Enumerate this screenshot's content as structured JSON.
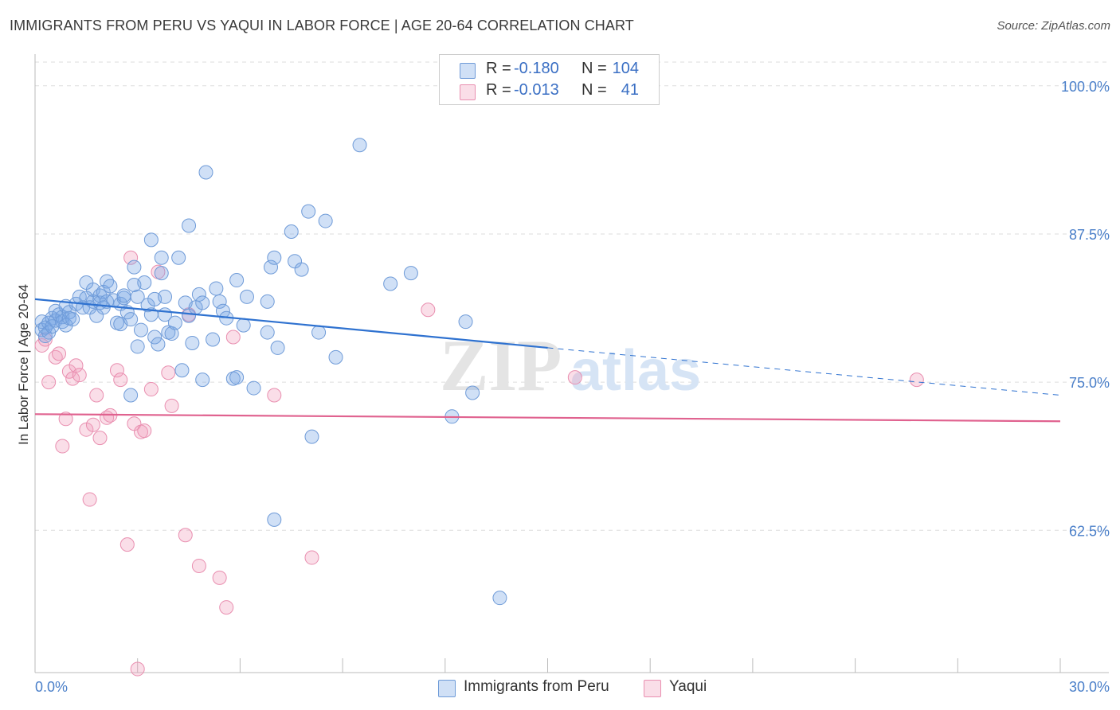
{
  "header": {
    "title": "IMMIGRANTS FROM PERU VS YAQUI IN LABOR FORCE | AGE 20-64 CORRELATION CHART",
    "source": "Source: ZipAtlas.com"
  },
  "watermark": {
    "zip": "ZIP",
    "atlas": "atlas"
  },
  "legend": {
    "rows": [
      {
        "r_label": "R =",
        "r_value": "-0.180",
        "n_label": "N =",
        "n_value": "104",
        "color": "#7fa8e0"
      },
      {
        "r_label": "R =",
        "r_value": "-0.013",
        "n_label": "N =",
        "n_value": "41",
        "color": "#f0a0bc"
      }
    ]
  },
  "bottom_legend": {
    "items": [
      {
        "label": "Immigrants from Peru",
        "color": "#7fa8e0"
      },
      {
        "label": "Yaqui",
        "color": "#f0a0bc"
      }
    ]
  },
  "colors": {
    "blue_fill": "rgba(120,165,228,0.35)",
    "blue_stroke": "#6f9bd8",
    "blue_line": "#2f72d0",
    "pink_fill": "rgba(240,160,188,0.35)",
    "pink_stroke": "#e98fb0",
    "pink_line": "#e0628f",
    "grid": "#dddddd",
    "tick_text": "#4a7fc9"
  },
  "chart_data": {
    "type": "scatter",
    "title": "IMMIGRANTS FROM PERU VS YAQUI IN LABOR FORCE | AGE 20-64 CORRELATION CHART",
    "xlabel": "",
    "ylabel": "In Labor Force | Age 20-64",
    "xlim": [
      0,
      30
    ],
    "ylim": [
      50.5,
      102
    ],
    "x_tick_labels": [
      "0.0%",
      "30.0%"
    ],
    "y_ticks": [
      100,
      87.5,
      75,
      62.5
    ],
    "y_tick_labels": [
      "100.0%",
      "87.5%",
      "75.0%",
      "62.5%"
    ],
    "series": [
      {
        "name": "Immigrants from Peru",
        "r": -0.18,
        "n": 104,
        "trend": {
          "x0": 0,
          "y0": 82.0,
          "x1": 15,
          "y1": 77.9,
          "x_end": 30,
          "y_end": 73.9
        },
        "points": [
          [
            0.2,
            79.4
          ],
          [
            0.2,
            80.1
          ],
          [
            0.3,
            79.6
          ],
          [
            0.3,
            78.9
          ],
          [
            0.4,
            80.0
          ],
          [
            0.4,
            79.2
          ],
          [
            0.5,
            80.4
          ],
          [
            0.5,
            79.7
          ],
          [
            0.6,
            81.0
          ],
          [
            0.6,
            80.2
          ],
          [
            0.7,
            80.7
          ],
          [
            0.8,
            80.5
          ],
          [
            0.8,
            80.1
          ],
          [
            0.9,
            81.4
          ],
          [
            0.9,
            79.8
          ],
          [
            1.0,
            80.9
          ],
          [
            1.0,
            80.4
          ],
          [
            1.1,
            80.3
          ],
          [
            1.2,
            81.6
          ],
          [
            1.3,
            82.2
          ],
          [
            1.4,
            81.3
          ],
          [
            1.5,
            83.4
          ],
          [
            1.5,
            82.1
          ],
          [
            1.6,
            81.3
          ],
          [
            1.7,
            82.8
          ],
          [
            1.7,
            81.8
          ],
          [
            1.8,
            80.6
          ],
          [
            1.9,
            82.3
          ],
          [
            1.9,
            81.7
          ],
          [
            2.0,
            82.6
          ],
          [
            2.0,
            81.3
          ],
          [
            2.1,
            83.5
          ],
          [
            2.1,
            81.8
          ],
          [
            2.2,
            83.1
          ],
          [
            2.3,
            81.9
          ],
          [
            2.4,
            80.0
          ],
          [
            2.5,
            81.6
          ],
          [
            2.5,
            79.9
          ],
          [
            2.6,
            82.1
          ],
          [
            2.6,
            82.3
          ],
          [
            2.7,
            80.9
          ],
          [
            2.8,
            80.3
          ],
          [
            2.9,
            84.7
          ],
          [
            2.9,
            83.2
          ],
          [
            3.0,
            78.0
          ],
          [
            3.0,
            82.2
          ],
          [
            3.1,
            79.4
          ],
          [
            3.2,
            83.4
          ],
          [
            3.3,
            81.5
          ],
          [
            3.4,
            80.7
          ],
          [
            3.4,
            87.0
          ],
          [
            3.5,
            78.8
          ],
          [
            3.5,
            82.0
          ],
          [
            3.6,
            78.2
          ],
          [
            3.7,
            85.5
          ],
          [
            3.7,
            84.2
          ],
          [
            3.8,
            82.2
          ],
          [
            3.8,
            80.7
          ],
          [
            3.9,
            79.2
          ],
          [
            4.0,
            79.1
          ],
          [
            4.1,
            80.0
          ],
          [
            4.2,
            85.5
          ],
          [
            4.3,
            76.0
          ],
          [
            4.4,
            81.7
          ],
          [
            4.5,
            80.6
          ],
          [
            4.5,
            88.2
          ],
          [
            4.6,
            78.3
          ],
          [
            4.7,
            81.3
          ],
          [
            4.8,
            82.4
          ],
          [
            4.9,
            81.7
          ],
          [
            4.9,
            75.2
          ],
          [
            5.0,
            92.7
          ],
          [
            5.2,
            78.6
          ],
          [
            5.3,
            82.9
          ],
          [
            5.4,
            81.8
          ],
          [
            5.5,
            81.0
          ],
          [
            5.6,
            80.4
          ],
          [
            5.8,
            75.3
          ],
          [
            5.9,
            83.6
          ],
          [
            5.9,
            75.4
          ],
          [
            6.1,
            79.8
          ],
          [
            6.2,
            82.2
          ],
          [
            6.4,
            74.5
          ],
          [
            6.8,
            79.2
          ],
          [
            6.8,
            81.8
          ],
          [
            6.9,
            84.7
          ],
          [
            7.0,
            85.5
          ],
          [
            7.1,
            77.9
          ],
          [
            7.5,
            87.7
          ],
          [
            7.6,
            85.2
          ],
          [
            7.8,
            84.5
          ],
          [
            8.0,
            89.4
          ],
          [
            8.1,
            70.4
          ],
          [
            8.3,
            79.2
          ],
          [
            8.5,
            88.6
          ],
          [
            8.8,
            77.1
          ],
          [
            9.5,
            95.0
          ],
          [
            10.4,
            83.3
          ],
          [
            11.0,
            84.2
          ],
          [
            12.2,
            72.1
          ],
          [
            12.6,
            80.1
          ],
          [
            12.8,
            74.1
          ],
          [
            13.6,
            56.8
          ],
          [
            7.0,
            63.4
          ],
          [
            2.8,
            73.9
          ]
        ]
      },
      {
        "name": "Yaqui",
        "r": -0.013,
        "n": 41,
        "trend": {
          "x0": 0,
          "y0": 72.3,
          "x1": 30,
          "y1": 71.7
        },
        "points": [
          [
            0.2,
            78.1
          ],
          [
            0.3,
            78.6
          ],
          [
            0.4,
            75.0
          ],
          [
            0.6,
            77.1
          ],
          [
            0.7,
            77.4
          ],
          [
            0.8,
            69.6
          ],
          [
            0.9,
            71.9
          ],
          [
            1.0,
            75.9
          ],
          [
            1.1,
            75.3
          ],
          [
            1.2,
            76.4
          ],
          [
            1.3,
            75.6
          ],
          [
            1.5,
            71.0
          ],
          [
            1.6,
            65.1
          ],
          [
            1.7,
            71.4
          ],
          [
            1.8,
            73.9
          ],
          [
            1.9,
            70.3
          ],
          [
            2.1,
            72.0
          ],
          [
            2.2,
            72.2
          ],
          [
            2.4,
            76.0
          ],
          [
            2.5,
            75.2
          ],
          [
            2.7,
            61.3
          ],
          [
            2.8,
            85.5
          ],
          [
            2.9,
            71.5
          ],
          [
            3.0,
            50.8
          ],
          [
            3.1,
            70.8
          ],
          [
            3.2,
            70.9
          ],
          [
            3.4,
            74.4
          ],
          [
            3.6,
            84.3
          ],
          [
            3.9,
            75.8
          ],
          [
            4.0,
            73.0
          ],
          [
            4.4,
            62.1
          ],
          [
            4.5,
            80.7
          ],
          [
            4.8,
            59.5
          ],
          [
            5.4,
            58.5
          ],
          [
            5.6,
            56.0
          ],
          [
            5.8,
            78.8
          ],
          [
            7.0,
            73.9
          ],
          [
            8.1,
            60.2
          ],
          [
            11.5,
            81.1
          ],
          [
            15.8,
            75.4
          ],
          [
            25.8,
            75.2
          ]
        ]
      }
    ]
  }
}
